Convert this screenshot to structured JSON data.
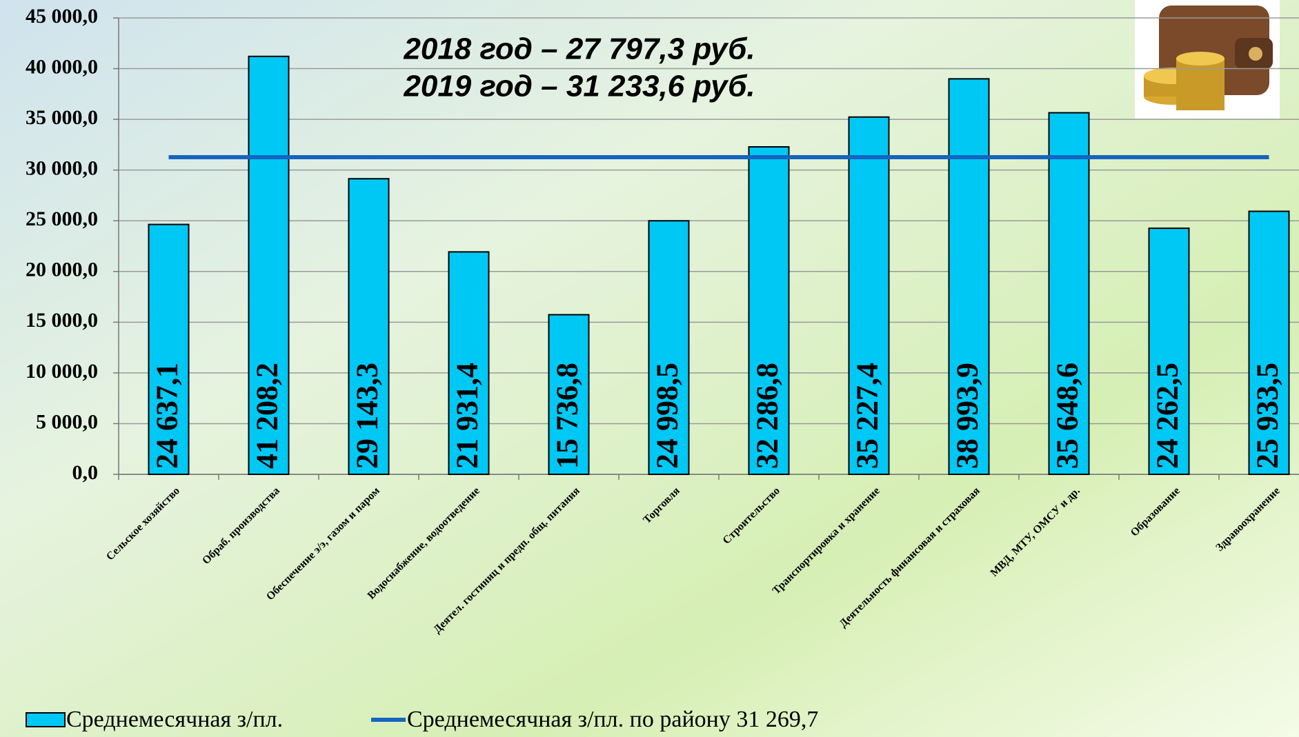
{
  "chart_data": {
    "type": "bar",
    "annotations": [
      "2018 год –  27 797,3 руб.",
      "2019 год – 31 233,6 руб."
    ],
    "categories": [
      "Сельское хозяйство",
      "Обраб. производства",
      "Обеспечение э/э, газом и паром",
      "Водоснабжение, водоотведение",
      "Деятел. гостиниц и предп. общ. питания",
      "Торговля",
      "Строительство",
      "Транспортировка и хранение",
      "Деятельность финансовая и страховая",
      "МВД, МТУ, ОМСУ и др.",
      "Образование",
      "Здравоохранение"
    ],
    "series": [
      {
        "name": "Среднемесячная з/пл.",
        "type": "bar",
        "color": "#00c8f4",
        "values": [
          24637.1,
          41208.2,
          29143.3,
          21931.4,
          15736.8,
          24998.5,
          32286.8,
          35227.4,
          38993.9,
          35648.6,
          24262.5,
          25933.5
        ],
        "value_labels": [
          "24 637,1",
          "41 208,2",
          "29 143,3",
          "21 931,4",
          "15 736,8",
          "24 998,5",
          "32 286,8",
          "35 227,4",
          "38 993,9",
          "35 648,6",
          "24 262,5",
          "25 933,5"
        ]
      },
      {
        "name": "Среднемесячная з/пл. по району 31 269,7",
        "type": "line",
        "color": "#1565c0",
        "values": [
          31269.7,
          31269.7,
          31269.7,
          31269.7,
          31269.7,
          31269.7,
          31269.7,
          31269.7,
          31269.7,
          31269.7,
          31269.7,
          31269.7
        ]
      }
    ],
    "ylim": [
      0,
      45000
    ],
    "yticks": [
      {
        "value": 0,
        "label": "0,0"
      },
      {
        "value": 5000,
        "label": "5 000,0"
      },
      {
        "value": 10000,
        "label": "10 000,0"
      },
      {
        "value": 15000,
        "label": "15 000,0"
      },
      {
        "value": 20000,
        "label": "20 000,0"
      },
      {
        "value": 25000,
        "label": "25 000,0"
      },
      {
        "value": 30000,
        "label": "30 000,0"
      },
      {
        "value": 35000,
        "label": "35 000,0"
      },
      {
        "value": 40000,
        "label": "40 000,0"
      },
      {
        "value": 45000,
        "label": "45 000,0"
      }
    ],
    "grid": true
  }
}
